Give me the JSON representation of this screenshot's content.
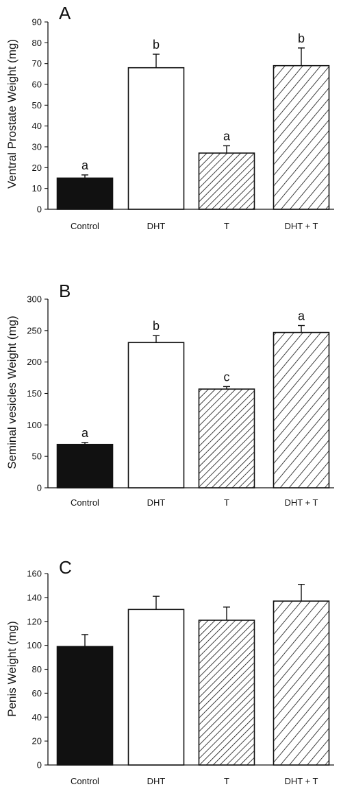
{
  "colors": {
    "Control": "#111111",
    "DHT": "#ffffff",
    "stroke": "#111111"
  },
  "fills": [
    "solid",
    "white",
    "hatch-dense",
    "hatch-sparse"
  ],
  "chart_data": [
    {
      "type": "bar",
      "panel_label": "A",
      "ylabel": "Ventral Prostate Weight (mg)",
      "categories": [
        "Control",
        "DHT",
        "T",
        "DHT + T"
      ],
      "values": [
        15,
        68,
        27,
        69
      ],
      "errors": [
        1.5,
        6.5,
        3.5,
        8.5
      ],
      "significance": [
        "a",
        "b",
        "a",
        "b"
      ],
      "ylim": [
        0,
        90
      ],
      "yticks": [
        0,
        10,
        20,
        30,
        40,
        50,
        60,
        70,
        80,
        90
      ]
    },
    {
      "type": "bar",
      "panel_label": "B",
      "ylabel": "Seminal vesicles Weight (mg)",
      "categories": [
        "Control",
        "DHT",
        "T",
        "DHT + T"
      ],
      "values": [
        69,
        231,
        157,
        247
      ],
      "errors": [
        3,
        11,
        4,
        11
      ],
      "significance": [
        "a",
        "b",
        "c",
        "a"
      ],
      "ylim": [
        0,
        300
      ],
      "yticks": [
        0,
        50,
        100,
        150,
        200,
        250,
        300
      ]
    },
    {
      "type": "bar",
      "panel_label": "C",
      "ylabel": "Penis Weight (mg)",
      "categories": [
        "Control",
        "DHT",
        "T",
        "DHT + T"
      ],
      "values": [
        99,
        130,
        121,
        137
      ],
      "errors": [
        10,
        11,
        11,
        14
      ],
      "significance": [],
      "ylim": [
        0,
        160
      ],
      "yticks": [
        0,
        20,
        40,
        60,
        80,
        100,
        120,
        140,
        160
      ]
    }
  ]
}
